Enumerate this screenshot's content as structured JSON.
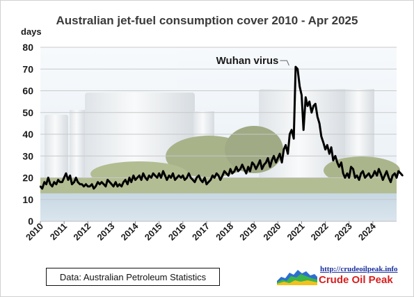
{
  "chart_data": {
    "type": "line",
    "title": "Australian jet-fuel consumption cover 2010 - Apr 2025",
    "ylabel": "days",
    "ylim": [
      0,
      80
    ],
    "yticks": [
      0,
      10,
      20,
      30,
      40,
      50,
      60,
      70,
      80
    ],
    "xlim": [
      2010,
      2025
    ],
    "xticks": [
      "2010",
      "2011",
      "2012",
      "2013",
      "2014",
      "2015",
      "2016",
      "2017",
      "2018",
      "2019",
      "2020",
      "2021",
      "2022",
      "2023",
      "2024"
    ],
    "grid": true,
    "series": [
      {
        "color": "#000000",
        "x": [
          2010.0,
          2010.08,
          2010.17,
          2010.25,
          2010.33,
          2010.42,
          2010.5,
          2010.58,
          2010.67,
          2010.75,
          2010.83,
          2010.92,
          2011.0,
          2011.08,
          2011.17,
          2011.25,
          2011.33,
          2011.42,
          2011.5,
          2011.58,
          2011.67,
          2011.75,
          2011.83,
          2011.92,
          2012.0,
          2012.08,
          2012.17,
          2012.25,
          2012.33,
          2012.42,
          2012.5,
          2012.58,
          2012.67,
          2012.75,
          2012.83,
          2012.92,
          2013.0,
          2013.08,
          2013.17,
          2013.25,
          2013.33,
          2013.42,
          2013.5,
          2013.58,
          2013.67,
          2013.75,
          2013.83,
          2013.92,
          2014.0,
          2014.08,
          2014.17,
          2014.25,
          2014.33,
          2014.42,
          2014.5,
          2014.58,
          2014.67,
          2014.75,
          2014.83,
          2014.92,
          2015.0,
          2015.08,
          2015.17,
          2015.25,
          2015.33,
          2015.42,
          2015.5,
          2015.58,
          2015.67,
          2015.75,
          2015.83,
          2015.92,
          2016.0,
          2016.08,
          2016.17,
          2016.25,
          2016.33,
          2016.42,
          2016.5,
          2016.58,
          2016.67,
          2016.75,
          2016.83,
          2016.92,
          2017.0,
          2017.08,
          2017.17,
          2017.25,
          2017.33,
          2017.42,
          2017.5,
          2017.58,
          2017.67,
          2017.75,
          2017.83,
          2017.92,
          2018.0,
          2018.08,
          2018.17,
          2018.25,
          2018.33,
          2018.42,
          2018.5,
          2018.58,
          2018.67,
          2018.75,
          2018.83,
          2018.92,
          2019.0,
          2019.08,
          2019.17,
          2019.25,
          2019.33,
          2019.42,
          2019.5,
          2019.58,
          2019.67,
          2019.75,
          2019.83,
          2019.92,
          2020.0,
          2020.08,
          2020.17,
          2020.25,
          2020.33,
          2020.42,
          2020.5,
          2020.58,
          2020.67,
          2020.75,
          2020.83,
          2020.92,
          2021.0,
          2021.08,
          2021.17,
          2021.25,
          2021.33,
          2021.42,
          2021.5,
          2021.58,
          2021.67,
          2021.75,
          2021.83,
          2021.92,
          2022.0,
          2022.08,
          2022.17,
          2022.25,
          2022.33,
          2022.42,
          2022.5,
          2022.58,
          2022.67,
          2022.75,
          2022.83,
          2022.92,
          2023.0,
          2023.08,
          2023.17,
          2023.25,
          2023.33,
          2023.42,
          2023.5,
          2023.58,
          2023.67,
          2023.75,
          2023.83,
          2023.92,
          2024.0,
          2024.08,
          2024.17,
          2024.25,
          2024.33,
          2024.42,
          2024.5,
          2024.58,
          2024.67,
          2024.75,
          2024.83,
          2024.92,
          2025.0,
          2025.08,
          2025.17,
          2025.25
        ],
        "values": [
          16,
          15,
          18,
          17,
          20,
          17,
          16,
          18,
          17,
          19,
          18,
          18,
          20,
          22,
          19,
          21,
          17,
          18,
          20,
          18,
          17,
          17,
          16,
          17,
          16,
          16,
          17,
          15,
          16,
          18,
          17,
          18,
          17,
          16,
          19,
          18,
          17,
          16,
          18,
          16,
          17,
          16,
          18,
          19,
          17,
          20,
          18,
          21,
          19,
          20,
          21,
          19,
          22,
          20,
          19,
          21,
          20,
          22,
          21,
          20,
          22,
          20,
          23,
          21,
          19,
          21,
          20,
          22,
          19,
          20,
          21,
          20,
          21,
          19,
          20,
          22,
          20,
          19,
          18,
          20,
          21,
          19,
          18,
          20,
          17,
          18,
          19,
          21,
          20,
          22,
          21,
          19,
          21,
          23,
          22,
          21,
          24,
          22,
          23,
          25,
          23,
          24,
          26,
          24,
          22,
          25,
          23,
          27,
          26,
          24,
          26,
          28,
          24,
          26,
          27,
          29,
          25,
          28,
          30,
          27,
          29,
          31,
          27,
          33,
          35,
          31,
          40,
          42,
          38,
          71,
          70,
          62,
          58,
          42,
          57,
          53,
          55,
          50,
          53,
          54,
          48,
          45,
          39,
          36,
          33,
          35,
          31,
          34,
          28,
          30,
          27,
          25,
          27,
          22,
          20,
          22,
          20,
          25,
          24,
          20,
          21,
          19,
          22,
          23,
          20,
          21,
          22,
          20,
          21,
          23,
          21,
          24,
          22,
          19,
          21,
          23,
          20,
          18,
          21,
          22,
          20,
          23,
          22,
          21
        ]
      }
    ],
    "annotations": [
      {
        "text": "Wuhan virus",
        "x": 2020.5,
        "y": 71
      }
    ],
    "source": "Data: Australian Petroleum Statistics",
    "logo": {
      "url": "http://crudeoilpeak.info",
      "name": "Crude Oil Peak"
    }
  }
}
